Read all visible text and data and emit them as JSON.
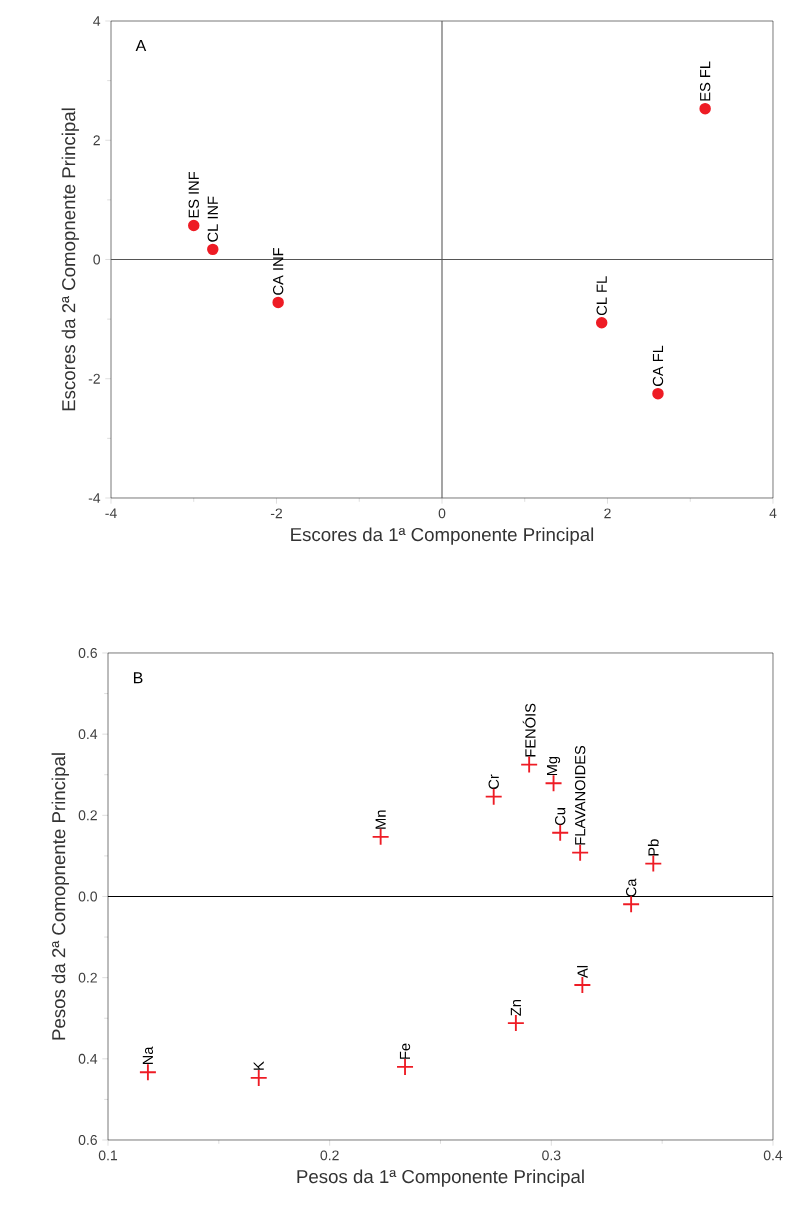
{
  "chart_data": [
    {
      "type": "scatter",
      "title": "A",
      "xlabel": "Escores da 1ª Componente Principal",
      "ylabel": "Escores da 2ª Comopnente Principal",
      "marker": "circle",
      "color": "#ee1c25",
      "x": [
        -3.0,
        -2.77,
        -1.98,
        1.93,
        2.61,
        3.18
      ],
      "values": [
        0.57,
        0.17,
        -0.72,
        -1.06,
        -2.25,
        2.53
      ],
      "annotations": [
        {
          "text": "ES INF",
          "x": -3.0,
          "y": 0.57
        },
        {
          "text": "CL INF",
          "x": -2.77,
          "y": 0.17
        },
        {
          "text": "CA INF",
          "x": -1.98,
          "y": -0.72
        },
        {
          "text": "CL FL",
          "x": 1.93,
          "y": -1.06
        },
        {
          "text": "CA FL",
          "x": 2.61,
          "y": -2.25
        },
        {
          "text": "ES FL",
          "x": 3.18,
          "y": 2.53
        }
      ],
      "ref_lines": [
        {
          "axis": "x",
          "value": 0,
          "color": "#555555"
        },
        {
          "axis": "y",
          "value": 0,
          "color": "#555555"
        }
      ],
      "xlim": [
        -4,
        4
      ],
      "ylim": [
        -4,
        4
      ],
      "xticks": [
        -4,
        -2,
        0,
        2,
        4
      ],
      "yticks": [
        -4,
        -2,
        0,
        2,
        4
      ]
    },
    {
      "type": "scatter",
      "title": "B",
      "xlabel": "Pesos da 1ª Componente Principal",
      "ylabel": "Pesos  da 2ª Comopnente Principal",
      "marker": "cross",
      "color": "#ee1c25",
      "x": [
        0.223,
        0.274,
        0.29,
        0.301,
        0.304,
        0.313,
        0.346,
        0.336,
        0.314,
        0.284,
        0.234,
        0.168,
        0.118
      ],
      "values": [
        0.147,
        0.246,
        0.325,
        0.279,
        0.157,
        0.108,
        0.081,
        -0.019,
        -0.218,
        -0.312,
        -0.42,
        -0.447,
        -0.433
      ],
      "annotations": [
        {
          "text": "Mn",
          "x": 0.223,
          "y": 0.147
        },
        {
          "text": "Cr",
          "x": 0.274,
          "y": 0.246
        },
        {
          "text": "FENÓIS",
          "x": 0.29,
          "y": 0.325
        },
        {
          "text": "Mg",
          "x": 0.301,
          "y": 0.279
        },
        {
          "text": "Cu",
          "x": 0.304,
          "y": 0.157
        },
        {
          "text": "FLAVANOIDES",
          "x": 0.313,
          "y": 0.108
        },
        {
          "text": "Pb",
          "x": 0.346,
          "y": 0.081
        },
        {
          "text": "Ca",
          "x": 0.336,
          "y": -0.019
        },
        {
          "text": "Al",
          "x": 0.314,
          "y": -0.218
        },
        {
          "text": "Zn",
          "x": 0.284,
          "y": -0.312
        },
        {
          "text": "Fe",
          "x": 0.234,
          "y": -0.42
        },
        {
          "text": "K",
          "x": 0.168,
          "y": -0.447
        },
        {
          "text": "Na",
          "x": 0.118,
          "y": -0.433
        }
      ],
      "ref_lines": [
        {
          "axis": "y",
          "value": 0,
          "color": "#000000"
        }
      ],
      "xlim": [
        0.1,
        0.4
      ],
      "ylim": [
        -0.6,
        0.6
      ],
      "xticks": [
        0.1,
        0.2,
        0.3,
        0.4
      ],
      "yticks": [
        0.6,
        0.4,
        0.2,
        {
          "value": 0,
          "label": "0.0"
        },
        {
          "value": -0.2,
          "label": "0.2"
        },
        {
          "value": -0.4,
          "label": "0.4"
        },
        {
          "value": -0.6,
          "label": "0.6"
        }
      ]
    }
  ]
}
